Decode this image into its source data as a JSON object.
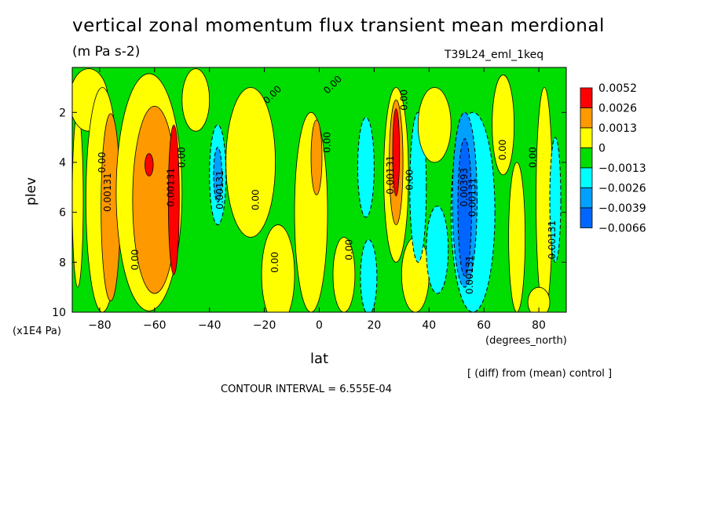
{
  "figure": {
    "title": "vertical zonal momentum flux transient mean merdional",
    "units": "(m Pa s-2)",
    "run_id": "T39L24_eml_1keq",
    "diff_note": "[ (diff) from (mean) control ]",
    "contour_interval": "CONTOUR INTERVAL = 6.555E-04"
  },
  "chart_data": {
    "type": "heatmap",
    "xlabel": "lat",
    "xunits": "(degrees_north)",
    "ylabel": "plev",
    "yunits": "(x1E4 Pa)",
    "xlim": [
      -90,
      90
    ],
    "ylim": [
      10,
      0.2
    ],
    "x_ticks": [
      -80,
      -60,
      -40,
      -20,
      0,
      20,
      40,
      60,
      80
    ],
    "y_ticks": [
      2,
      4,
      6,
      8,
      10
    ],
    "legend": {
      "placement": "right",
      "levels": [
        {
          "label": "0.0052",
          "color": "#ff0000"
        },
        {
          "label": "0.0026",
          "color": "#ff9900"
        },
        {
          "label": "0.0013",
          "color": "#ffff00"
        },
        {
          "label": "0",
          "color": "#00dd00"
        },
        {
          "label": "-0.0013",
          "color": "#00ffff"
        },
        {
          "label": "-0.0026",
          "color": "#00a0ff"
        },
        {
          "label": "-0.0039",
          "color": "#0066ff"
        },
        {
          "label": "-0.0066",
          "color": ""
        }
      ]
    },
    "background_level": "0",
    "regions": [
      {
        "lat": -88,
        "p": 5.5,
        "wlat": 4,
        "hp": 7,
        "level": "0.0013"
      },
      {
        "lat": -84,
        "p": 1.5,
        "wlat": 14,
        "hp": 2.5,
        "level": "0.0013"
      },
      {
        "lat": -79,
        "p": 5.5,
        "wlat": 12,
        "hp": 9,
        "level": "0.0013"
      },
      {
        "lat": -76,
        "p": 5.8,
        "wlat": 7,
        "hp": 7.5,
        "level": "0.0026"
      },
      {
        "lat": -62,
        "p": 5.2,
        "wlat": 24,
        "hp": 9.5,
        "level": "0.0013"
      },
      {
        "lat": -60,
        "p": 5.5,
        "wlat": 16,
        "hp": 7.5,
        "level": "0.0026"
      },
      {
        "lat": -62,
        "p": 4.1,
        "wlat": 3,
        "hp": 0.9,
        "level": "0.0052"
      },
      {
        "lat": -53,
        "p": 5.5,
        "wlat": 4,
        "hp": 6,
        "level": "0.0052"
      },
      {
        "lat": -45,
        "p": 1.5,
        "wlat": 10,
        "hp": 2.5,
        "level": "0.0013"
      },
      {
        "lat": -37,
        "p": 4.5,
        "wlat": 6,
        "hp": 4,
        "level": "-0.0013"
      },
      {
        "lat": -37,
        "p": 4.5,
        "wlat": 3,
        "hp": 2.2,
        "level": "-0.0026"
      },
      {
        "lat": -25,
        "p": 4.0,
        "wlat": 18,
        "hp": 6,
        "level": "0.0013"
      },
      {
        "lat": -15,
        "p": 8.5,
        "wlat": 12,
        "hp": 4,
        "level": "0.0013"
      },
      {
        "lat": -3,
        "p": 6.0,
        "wlat": 12,
        "hp": 8,
        "level": "0.0013"
      },
      {
        "lat": -1,
        "p": 3.8,
        "wlat": 4,
        "hp": 3,
        "level": "0.0026"
      },
      {
        "lat": 9,
        "p": 8.5,
        "wlat": 8,
        "hp": 3,
        "level": "0.0013"
      },
      {
        "lat": 17,
        "p": 4.2,
        "wlat": 6,
        "hp": 4,
        "level": "-0.0013"
      },
      {
        "lat": 18,
        "p": 8.6,
        "wlat": 6,
        "hp": 3,
        "level": "-0.0013"
      },
      {
        "lat": 28,
        "p": 4.5,
        "wlat": 9,
        "hp": 7,
        "level": "0.0013"
      },
      {
        "lat": 28,
        "p": 4.0,
        "wlat": 5,
        "hp": 5,
        "level": "0.0026"
      },
      {
        "lat": 28,
        "p": 3.6,
        "wlat": 2.5,
        "hp": 3.5,
        "level": "0.0052"
      },
      {
        "lat": 35,
        "p": 8.5,
        "wlat": 10,
        "hp": 3,
        "level": "0.0013"
      },
      {
        "lat": 36,
        "p": 5.0,
        "wlat": 6,
        "hp": 6,
        "level": "-0.0013"
      },
      {
        "lat": 43,
        "p": 7.5,
        "wlat": 8,
        "hp": 3.5,
        "level": "-0.0013"
      },
      {
        "lat": 42,
        "p": 2.5,
        "wlat": 12,
        "hp": 3,
        "level": "0.0013"
      },
      {
        "lat": 56,
        "p": 6.0,
        "wlat": 16,
        "hp": 8,
        "level": "-0.0013"
      },
      {
        "lat": 53,
        "p": 5.5,
        "wlat": 9,
        "hp": 7,
        "level": "-0.0026"
      },
      {
        "lat": 53,
        "p": 5.8,
        "wlat": 5,
        "hp": 5.5,
        "level": "-0.0039"
      },
      {
        "lat": 67,
        "p": 2.5,
        "wlat": 8,
        "hp": 4,
        "level": "0.0013"
      },
      {
        "lat": 72,
        "p": 7.0,
        "wlat": 6,
        "hp": 6,
        "level": "0.0013"
      },
      {
        "lat": 82,
        "p": 5.5,
        "wlat": 6,
        "hp": 9,
        "level": "0.0013"
      },
      {
        "lat": 86,
        "p": 5.5,
        "wlat": 4,
        "hp": 5,
        "level": "-0.0013"
      },
      {
        "lat": 80,
        "p": 9.6,
        "wlat": 8,
        "hp": 1.2,
        "level": "0.0013"
      }
    ],
    "contour_labels": [
      {
        "text": "0.00",
        "lat": -79,
        "p": 4.0,
        "rot": -90
      },
      {
        "text": "0.00131",
        "lat": -77,
        "p": 5.2,
        "rot": -90
      },
      {
        "text": "0.00",
        "lat": -67,
        "p": 7.9,
        "rot": -90
      },
      {
        "text": "0.00131",
        "lat": -54,
        "p": 5.0,
        "rot": -90
      },
      {
        "text": "0.00",
        "lat": -50,
        "p": 3.8,
        "rot": -90
      },
      {
        "text": "0.00131",
        "lat": -36,
        "p": 5.1,
        "rot": -90
      },
      {
        "text": "0.00",
        "lat": -23,
        "p": 5.5,
        "rot": -90
      },
      {
        "text": "0.00",
        "lat": -16,
        "p": 8.0,
        "rot": -90
      },
      {
        "text": "0.00",
        "lat": -17,
        "p": 1.3,
        "rot": -45
      },
      {
        "text": "0.00",
        "lat": 5,
        "p": 0.9,
        "rot": -45
      },
      {
        "text": "0.00",
        "lat": 3,
        "p": 3.2,
        "rot": -90
      },
      {
        "text": "0.00",
        "lat": 11,
        "p": 7.5,
        "rot": -90
      },
      {
        "text": "0.00131",
        "lat": 26,
        "p": 4.5,
        "rot": -90
      },
      {
        "text": "0.00",
        "lat": 31,
        "p": 1.5,
        "rot": -90
      },
      {
        "text": "0.00",
        "lat": 33,
        "p": 4.7,
        "rot": -90
      },
      {
        "text": "0.00393",
        "lat": 53,
        "p": 5.0,
        "rot": -90
      },
      {
        "text": "0.00131",
        "lat": 56,
        "p": 5.4,
        "rot": -90
      },
      {
        "text": "0.00131",
        "lat": 55,
        "p": 8.5,
        "rot": -90
      },
      {
        "text": "0.00",
        "lat": 67,
        "p": 3.5,
        "rot": -90
      },
      {
        "text": "0.00",
        "lat": 78,
        "p": 3.8,
        "rot": -90
      },
      {
        "text": "0.00131",
        "lat": 85,
        "p": 7.1,
        "rot": -90
      }
    ]
  }
}
